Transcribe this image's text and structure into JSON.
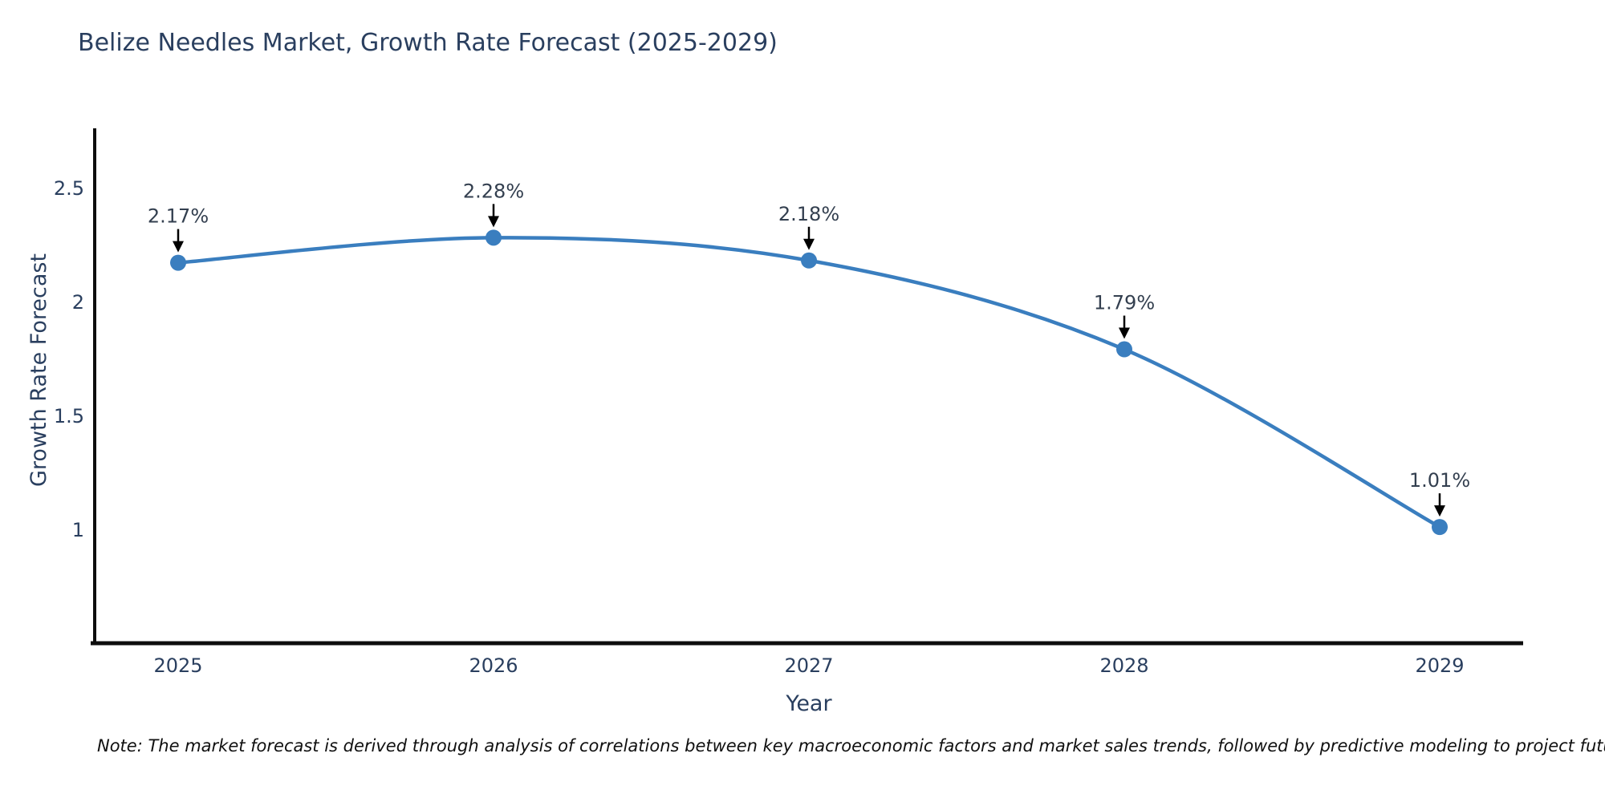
{
  "chart_data": {
    "type": "line",
    "title": "Belize Needles Market, Growth Rate Forecast (2025-2029)",
    "categories": [
      "2025",
      "2026",
      "2027",
      "2028",
      "2029"
    ],
    "values": [
      2.17,
      2.28,
      2.18,
      1.79,
      1.01
    ],
    "point_labels": [
      "2.17%",
      "2.28%",
      "2.18%",
      "1.79%",
      "1.01%"
    ],
    "xlabel": "Year",
    "ylabel": "Growth Rate Forecast",
    "yticks": [
      2.5,
      2,
      1.5,
      1
    ],
    "ylim": [
      0.5,
      2.76
    ],
    "line_shape": "spline",
    "grid": false,
    "legend_position": "none",
    "colors": {
      "line": "#3a7ebf",
      "marker": "#3a7ebf",
      "axis_line": "#0d0d0d",
      "tick_text": "#2a3f5f",
      "annotation_text": "#333f4f",
      "arrow": "#000000",
      "title_text": "#2a3f5f",
      "background": "#ffffff"
    }
  },
  "note": {
    "text": "Note: The market forecast is derived through analysis of correlations between key macroeconomic factors and market sales trends, followed by predictive modeling to project future sales"
  }
}
